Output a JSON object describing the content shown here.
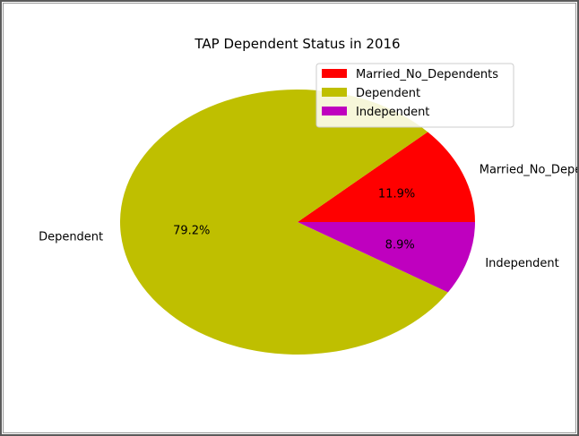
{
  "chart_data": {
    "type": "pie",
    "title": "TAP Dependent Status in 2016",
    "labels": [
      "Married_No_Dependents",
      "Dependent",
      "Independent"
    ],
    "values": [
      11.9,
      79.2,
      8.9
    ],
    "autopct": [
      "11.9%",
      "79.2%",
      "8.9%"
    ],
    "colors": [
      "#ff0000",
      "#bfbf00",
      "#bf00bf"
    ],
    "legend": {
      "placement": "upper-right",
      "entries": [
        "Married_No_Dependents",
        "Dependent",
        "Independent"
      ]
    }
  }
}
